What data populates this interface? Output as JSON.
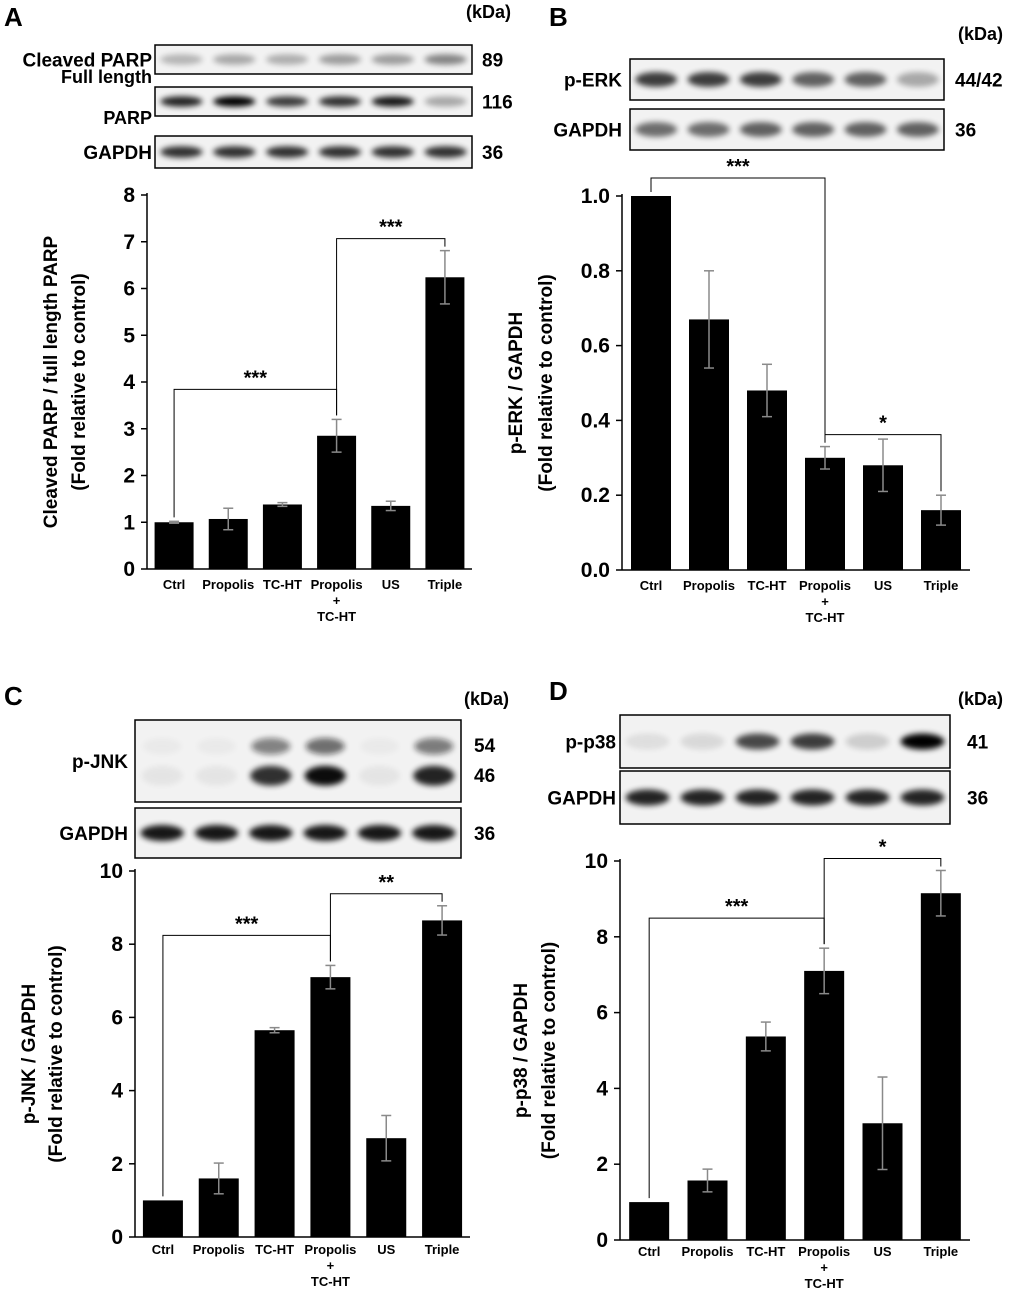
{
  "categories": [
    "Ctrl",
    "Propolis",
    "TC-HT",
    "Propolis\n+\nTC-HT",
    "US",
    "Triple"
  ],
  "kda_label": "(kDa)",
  "chart_data": [
    {
      "panel": "A",
      "type": "bar",
      "ylabel": [
        "Cleaved PARP / full length PARP",
        "(Fold relative to control)"
      ],
      "ylim": [
        0,
        8
      ],
      "yticks": [
        "0",
        "1",
        "2",
        "3",
        "4",
        "5",
        "6",
        "7",
        "8"
      ],
      "values": [
        1.0,
        1.07,
        1.38,
        2.85,
        1.35,
        6.24
      ],
      "errors": [
        0.02,
        0.23,
        0.04,
        0.35,
        0.1,
        0.57
      ],
      "significance": [
        {
          "from": 0,
          "to": 3,
          "label": "***"
        },
        {
          "from": 3,
          "to": 5,
          "label": "***"
        }
      ],
      "blots": [
        {
          "name": "Cleaved PARP",
          "kda": [
            "89"
          ],
          "bands": [
            0.25,
            0.3,
            0.28,
            0.35,
            0.35,
            0.45
          ]
        },
        {
          "name": "Full length PARP",
          "name_lines": [
            "Full length",
            "PARP"
          ],
          "kda": [
            "116"
          ],
          "bands": [
            0.85,
            1.0,
            0.75,
            0.8,
            0.9,
            0.3
          ]
        },
        {
          "name": "GAPDH",
          "kda": [
            "36"
          ],
          "bands": [
            0.8,
            0.8,
            0.8,
            0.8,
            0.8,
            0.8
          ]
        }
      ]
    },
    {
      "panel": "B",
      "type": "bar",
      "ylabel": [
        "p-ERK / GAPDH",
        "(Fold relative to control)"
      ],
      "ylim": [
        0,
        1.0
      ],
      "yticks": [
        "0.0",
        "0.2",
        "0.4",
        "0.6",
        "0.8",
        "1.0"
      ],
      "values": [
        1.0,
        0.67,
        0.48,
        0.3,
        0.28,
        0.16
      ],
      "errors": [
        0.0,
        0.13,
        0.07,
        0.03,
        0.07,
        0.04
      ],
      "significance": [
        {
          "from": 0,
          "to": 3,
          "label": "***"
        },
        {
          "from": 3,
          "to": 5,
          "label": "*"
        }
      ],
      "blots": [
        {
          "name": "p-ERK",
          "kda": [
            "44/42"
          ],
          "bands": [
            0.75,
            0.75,
            0.75,
            0.6,
            0.6,
            0.3
          ]
        },
        {
          "name": "GAPDH",
          "kda": [
            "36"
          ],
          "bands": [
            0.55,
            0.55,
            0.6,
            0.6,
            0.6,
            0.6
          ]
        }
      ]
    },
    {
      "panel": "C",
      "type": "bar",
      "ylabel": [
        "p-JNK / GAPDH",
        "(Fold relative to control)"
      ],
      "ylim": [
        0,
        10
      ],
      "yticks": [
        "0",
        "2",
        "4",
        "6",
        "8",
        "10"
      ],
      "values": [
        1.0,
        1.6,
        5.65,
        7.1,
        2.7,
        8.65
      ],
      "errors": [
        0.0,
        0.42,
        0.07,
        0.32,
        0.62,
        0.4
      ],
      "significance": [
        {
          "from": 0,
          "to": 3,
          "label": "***"
        },
        {
          "from": 3,
          "to": 5,
          "label": "**"
        }
      ],
      "blots": [
        {
          "name": "p-JNK",
          "kda": [
            "54",
            "46"
          ],
          "bands": [
            0.02,
            0.02,
            0.8,
            0.95,
            0.05,
            0.85
          ]
        },
        {
          "name": "GAPDH",
          "kda": [
            "36"
          ],
          "bands": [
            0.9,
            0.9,
            0.9,
            0.9,
            0.9,
            0.9
          ]
        }
      ]
    },
    {
      "panel": "D",
      "type": "bar",
      "ylabel": [
        "p-p38 / GAPDH",
        "(Fold relative to control)"
      ],
      "ylim": [
        0,
        10
      ],
      "yticks": [
        "0",
        "2",
        "4",
        "6",
        "8",
        "10"
      ],
      "values": [
        1.0,
        1.57,
        5.37,
        7.1,
        3.08,
        9.15
      ],
      "errors": [
        0.0,
        0.3,
        0.38,
        0.6,
        1.22,
        0.6
      ],
      "significance": [
        {
          "from": 0,
          "to": 3,
          "label": "***"
        },
        {
          "from": 3,
          "to": 5,
          "label": "*"
        }
      ],
      "blots": [
        {
          "name": "p-p38",
          "kda": [
            "41"
          ],
          "bands": [
            0.08,
            0.1,
            0.7,
            0.75,
            0.15,
            1.0
          ]
        },
        {
          "name": "GAPDH",
          "kda": [
            "36"
          ],
          "bands": [
            0.85,
            0.85,
            0.85,
            0.85,
            0.85,
            0.85
          ]
        }
      ]
    }
  ]
}
